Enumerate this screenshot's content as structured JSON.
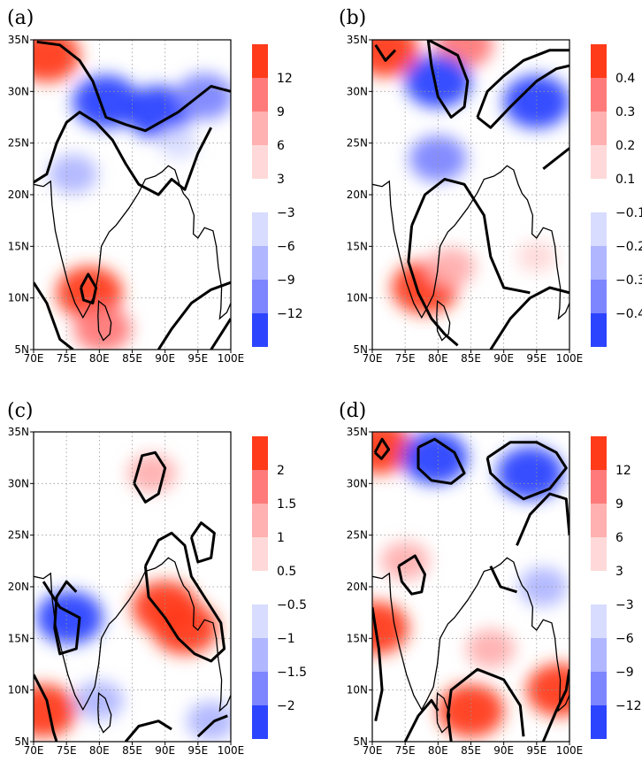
{
  "chart_data": [
    {
      "panel": "(a)",
      "type": "heatmap",
      "x_ticks": [
        "70E",
        "75E",
        "80E",
        "85E",
        "90E",
        "95E",
        "100E"
      ],
      "y_ticks": [
        "35N",
        "30N",
        "25N",
        "20N",
        "15N",
        "10N",
        "5N"
      ],
      "xlim": [
        70,
        100
      ],
      "ylim": [
        5,
        35
      ],
      "colorbar": {
        "positive": [
          "12",
          "9",
          "6",
          "3"
        ],
        "negative": [
          "−3",
          "−6",
          "−9",
          "−12"
        ]
      },
      "blobs": [
        {
          "lon": 72,
          "lat": 33.5,
          "value": 12
        },
        {
          "lon": 81,
          "lat": 29,
          "value": -12
        },
        {
          "lon": 89,
          "lat": 28,
          "value": -12
        },
        {
          "lon": 96,
          "lat": 29.5,
          "value": -9
        },
        {
          "lon": 76,
          "lat": 22,
          "value": -6
        },
        {
          "lon": 92,
          "lat": 25,
          "value": -3
        },
        {
          "lon": 78.5,
          "lat": 10.5,
          "value": 12
        },
        {
          "lon": 80.5,
          "lat": 7,
          "value": 9
        }
      ]
    },
    {
      "panel": "(b)",
      "type": "heatmap",
      "x_ticks": [
        "70E",
        "75E",
        "80E",
        "85E",
        "90E",
        "95E",
        "100E"
      ],
      "y_ticks": [
        "35N",
        "30N",
        "25N",
        "20N",
        "15N",
        "10N",
        "5N"
      ],
      "xlim": [
        70,
        100
      ],
      "ylim": [
        5,
        35
      ],
      "colorbar": {
        "positive": [
          "0.4",
          "0.3",
          "0.2",
          "0.1"
        ],
        "negative": [
          "−0.1",
          "−0.2",
          "−0.3",
          "−0.4"
        ]
      },
      "blobs": [
        {
          "lon": 72,
          "lat": 34,
          "value": 0.4
        },
        {
          "lon": 84,
          "lat": 34.5,
          "value": 0.3
        },
        {
          "lon": 80,
          "lat": 31,
          "value": -0.4
        },
        {
          "lon": 95,
          "lat": 29,
          "value": -0.4
        },
        {
          "lon": 80,
          "lat": 23.5,
          "value": -0.3
        },
        {
          "lon": 78,
          "lat": 11,
          "value": 0.4
        },
        {
          "lon": 82,
          "lat": 13,
          "value": 0.2
        },
        {
          "lon": 95,
          "lat": 14,
          "value": 0.1
        }
      ]
    },
    {
      "panel": "(c)",
      "type": "heatmap",
      "x_ticks": [
        "70E",
        "75E",
        "80E",
        "85E",
        "90E",
        "95E",
        "100E"
      ],
      "y_ticks": [
        "35N",
        "30N",
        "25N",
        "20N",
        "15N",
        "10N",
        "5N"
      ],
      "xlim": [
        70,
        100
      ],
      "ylim": [
        5,
        35
      ],
      "colorbar": {
        "positive": [
          "2",
          "1.5",
          "1",
          "0.5"
        ],
        "negative": [
          "−0.5",
          "−1",
          "−1.5",
          "−2"
        ]
      },
      "blobs": [
        {
          "lon": 75.5,
          "lat": 17,
          "value": -2
        },
        {
          "lon": 90,
          "lat": 18,
          "value": 2
        },
        {
          "lon": 93,
          "lat": 16,
          "value": 2
        },
        {
          "lon": 71.5,
          "lat": 8,
          "value": 2
        },
        {
          "lon": 88,
          "lat": 31,
          "value": 1
        },
        {
          "lon": 80,
          "lat": 9,
          "value": -1
        },
        {
          "lon": 97,
          "lat": 7,
          "value": -1
        }
      ]
    },
    {
      "panel": "(d)",
      "type": "heatmap",
      "x_ticks": [
        "70E",
        "75E",
        "80E",
        "85E",
        "90E",
        "95E",
        "100E"
      ],
      "y_ticks": [
        "35N",
        "30N",
        "25N",
        "20N",
        "15N",
        "10N",
        "5N"
      ],
      "xlim": [
        70,
        100
      ],
      "ylim": [
        5,
        35
      ],
      "colorbar": {
        "positive": [
          "12",
          "9",
          "6",
          "3"
        ],
        "negative": [
          "−3",
          "−6",
          "−9",
          "−12"
        ]
      },
      "blobs": [
        {
          "lon": 71,
          "lat": 33.5,
          "value": 12
        },
        {
          "lon": 79.5,
          "lat": 32.5,
          "value": -12
        },
        {
          "lon": 94,
          "lat": 31,
          "value": -12
        },
        {
          "lon": 75,
          "lat": 22.5,
          "value": 6
        },
        {
          "lon": 96,
          "lat": 20,
          "value": -6
        },
        {
          "lon": 70.5,
          "lat": 16,
          "value": 12
        },
        {
          "lon": 85,
          "lat": 8,
          "value": 12
        },
        {
          "lon": 98.5,
          "lat": 10,
          "value": 12
        },
        {
          "lon": 88,
          "lat": 14,
          "value": 6
        }
      ]
    }
  ]
}
